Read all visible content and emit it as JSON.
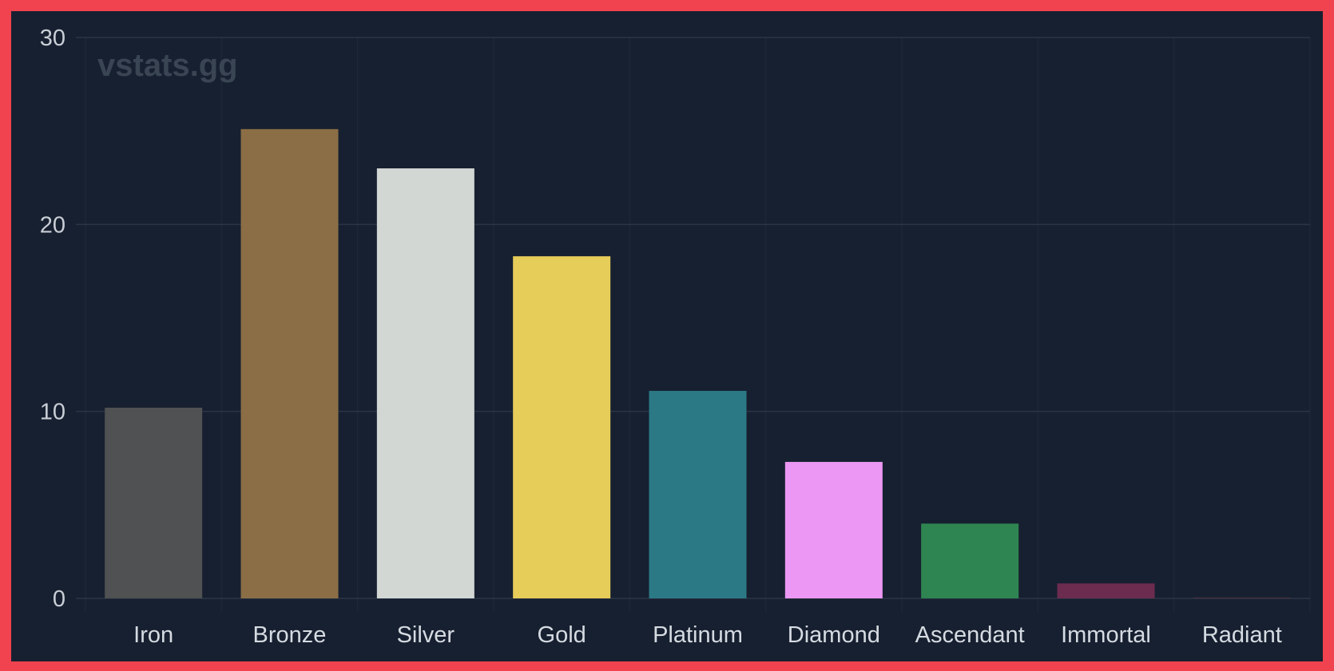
{
  "watermark": "vstats.gg",
  "chart_data": {
    "type": "bar",
    "title": "",
    "xlabel": "",
    "ylabel": "",
    "categories": [
      "Iron",
      "Bronze",
      "Silver",
      "Gold",
      "Platinum",
      "Diamond",
      "Ascendant",
      "Immortal",
      "Radiant"
    ],
    "values": [
      10.2,
      25.1,
      23.0,
      18.3,
      11.1,
      7.3,
      4.0,
      0.8,
      0.05
    ],
    "colors": [
      "#4f5152",
      "#8b6e46",
      "#d3d7d4",
      "#e6cc59",
      "#2c7986",
      "#eb97f3",
      "#2e8551",
      "#6b2c4f",
      "#4a3040"
    ],
    "ylim": [
      0,
      30
    ],
    "yticks": [
      0,
      10,
      20,
      30
    ],
    "grid": true,
    "legend": "none"
  },
  "colors": {
    "border": "#f0434f",
    "background": "#172030",
    "gridline": "#2a3545",
    "text": "#d6dbe2"
  }
}
